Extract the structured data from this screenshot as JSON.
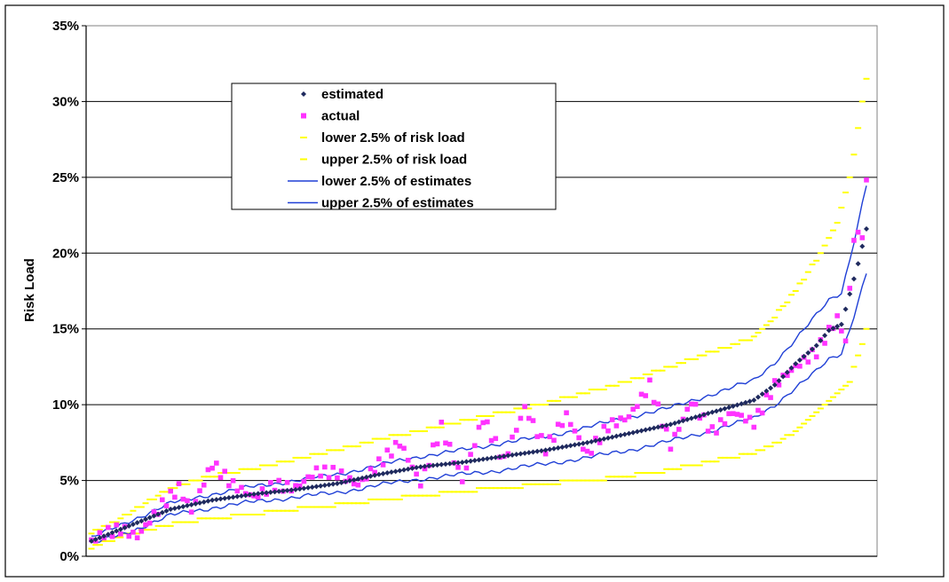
{
  "chart_data": {
    "type": "scatter",
    "title": "",
    "xlabel": "",
    "ylabel": "Risk Load",
    "ylim": [
      0,
      35
    ],
    "y_ticks": [
      "0%",
      "5%",
      "10%",
      "15%",
      "20%",
      "25%",
      "30%",
      "35%"
    ],
    "y_tick_values": [
      0,
      5,
      10,
      15,
      20,
      25,
      30,
      35
    ],
    "x_ticks_shown": false,
    "grid": "horizontal",
    "legend_position": "upper-left",
    "n_points": 187,
    "colors": {
      "estimated": "#1f2a5e",
      "actual": "#ff33ff",
      "lower_risk": "#ffff00",
      "upper_risk": "#ffff00",
      "lower_est": "#1f3fd6",
      "upper_est": "#1f3fd6"
    },
    "series": [
      {
        "name": "estimated",
        "style": "diamond-marker",
        "x": [
          1,
          10,
          20,
          30,
          40,
          50,
          60,
          70,
          80,
          90,
          100,
          110,
          120,
          130,
          140,
          150,
          160,
          165,
          170,
          175,
          178,
          181,
          183,
          185,
          187
        ],
        "values": [
          1.0,
          2.0,
          3.1,
          3.7,
          4.1,
          4.4,
          4.8,
          5.4,
          5.9,
          6.2,
          6.6,
          7.0,
          7.5,
          8.1,
          8.7,
          9.5,
          10.3,
          11.3,
          12.7,
          13.9,
          14.9,
          15.3,
          17.3,
          19.3,
          21.6
        ]
      },
      {
        "name": "actual",
        "style": "square-marker",
        "x": [
          1,
          4,
          8,
          12,
          18,
          22,
          25,
          30,
          35,
          40,
          45,
          50,
          55,
          60,
          65,
          70,
          75,
          80,
          85,
          90,
          95,
          100,
          105,
          110,
          115,
          120,
          125,
          130,
          135,
          140,
          145,
          150,
          155,
          160,
          165,
          170,
          175,
          180,
          182,
          184,
          186,
          187
        ],
        "values": [
          1.0,
          1.5,
          1.8,
          1.3,
          3.4,
          4.5,
          3.0,
          6.1,
          4.7,
          3.9,
          4.7,
          4.5,
          5.6,
          5.5,
          4.7,
          6.1,
          7.5,
          4.8,
          8.5,
          5.0,
          9.1,
          6.3,
          9.8,
          7.1,
          9.3,
          6.7,
          8.6,
          9.2,
          11.3,
          7.3,
          10.2,
          8.2,
          9.5,
          8.8,
          11.3,
          12.5,
          13.5,
          15.7,
          14.2,
          21.0,
          21.3,
          24.5
        ]
      },
      {
        "name": "lower 2.5% of risk load",
        "style": "dash-marker",
        "x": [
          1,
          10,
          20,
          30,
          40,
          50,
          60,
          70,
          80,
          90,
          100,
          110,
          120,
          130,
          140,
          150,
          160,
          165,
          170,
          175,
          180,
          183,
          185,
          187
        ],
        "values": [
          0.6,
          1.5,
          2.1,
          2.5,
          2.8,
          3.1,
          3.4,
          3.7,
          4.0,
          4.3,
          4.5,
          4.8,
          5.0,
          5.3,
          5.7,
          6.3,
          6.8,
          7.4,
          8.3,
          9.4,
          10.7,
          11.5,
          13.3,
          14.9
        ]
      },
      {
        "name": "upper 2.5% of risk load",
        "style": "dash-marker",
        "x": [
          1,
          10,
          20,
          30,
          40,
          50,
          60,
          70,
          80,
          90,
          100,
          110,
          120,
          130,
          140,
          150,
          160,
          165,
          170,
          175,
          180,
          183,
          185,
          187
        ],
        "values": [
          1.5,
          2.8,
          4.5,
          5.3,
          5.8,
          6.4,
          7.0,
          7.7,
          8.3,
          8.9,
          9.5,
          10.1,
          10.8,
          11.6,
          12.5,
          13.5,
          14.4,
          15.8,
          17.5,
          19.6,
          22.1,
          25.0,
          28.2,
          31.6
        ]
      },
      {
        "name": "lower 2.5% of estimates",
        "style": "line",
        "x": [
          1,
          10,
          20,
          30,
          40,
          50,
          60,
          70,
          80,
          90,
          100,
          110,
          120,
          130,
          140,
          150,
          160,
          165,
          170,
          175,
          178,
          181,
          183,
          185,
          187
        ],
        "values": [
          0.8,
          1.6,
          2.7,
          3.2,
          3.6,
          3.9,
          4.2,
          4.7,
          5.1,
          5.4,
          5.7,
          6.1,
          6.5,
          7.0,
          7.6,
          8.3,
          9.1,
          10.0,
          11.1,
          12.2,
          13.0,
          13.4,
          15.0,
          16.8,
          18.7
        ]
      },
      {
        "name": "upper 2.5% of estimates",
        "style": "line",
        "x": [
          1,
          10,
          20,
          30,
          40,
          50,
          60,
          70,
          80,
          90,
          100,
          110,
          120,
          130,
          140,
          150,
          160,
          165,
          170,
          175,
          178,
          181,
          183,
          185,
          187
        ],
        "values": [
          1.2,
          2.3,
          3.5,
          4.1,
          4.6,
          5.0,
          5.4,
          6.0,
          6.6,
          7.0,
          7.5,
          7.9,
          8.5,
          9.2,
          9.8,
          10.7,
          11.6,
          12.8,
          14.3,
          15.9,
          16.9,
          17.4,
          19.6,
          22.0,
          24.5
        ]
      }
    ]
  }
}
